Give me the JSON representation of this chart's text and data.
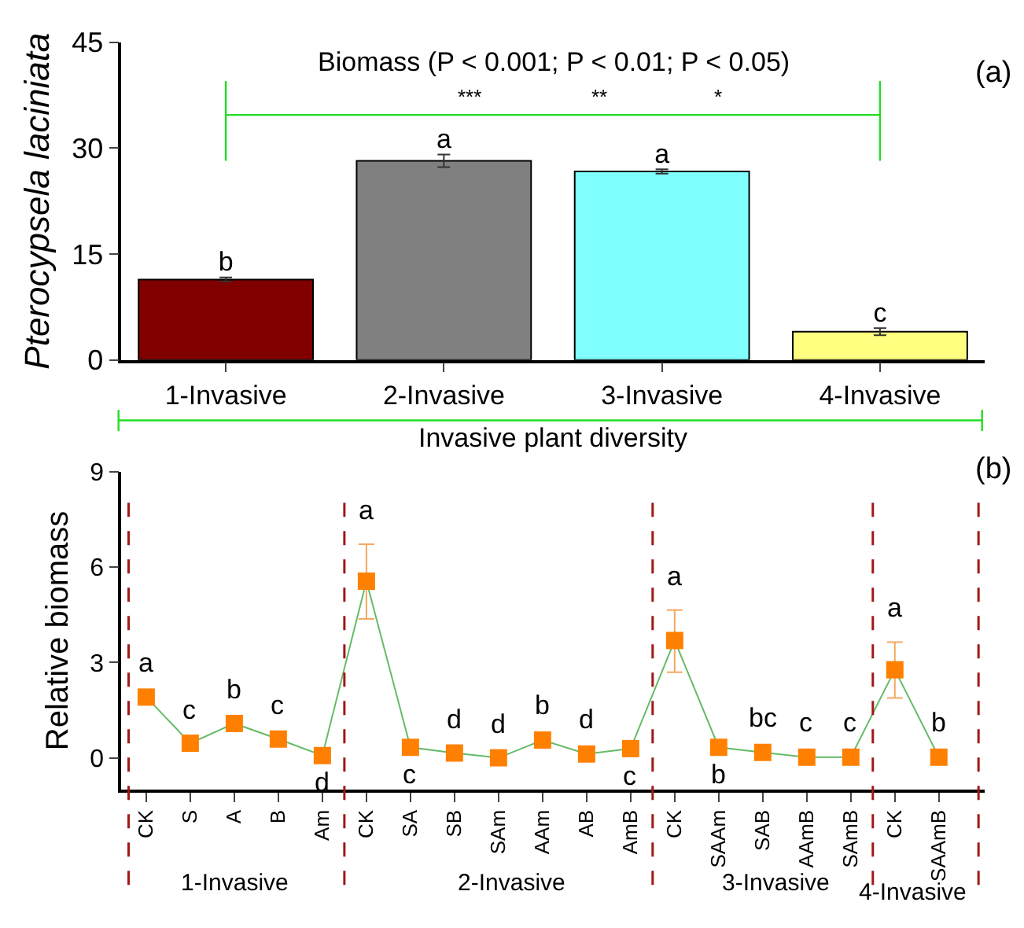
{
  "chart_data": [
    {
      "type": "bar",
      "ylabel": "Pterocypsela laciniata",
      "xlabel": "Invasive plant diversity",
      "categories": [
        "1-Invasive",
        "2-Invasive",
        "3-Invasive",
        "4-Invasive"
      ],
      "values": [
        11.4,
        28.2,
        26.7,
        4.0
      ],
      "colors": [
        "#800000",
        "#808080",
        "#80ffff",
        "#ffff80"
      ],
      "errors": [
        0.3,
        0.9,
        0.3,
        0.5
      ],
      "value_labels": [
        "b",
        "a",
        "a",
        "c"
      ],
      "ylim": [
        0,
        45
      ],
      "yticks": [
        0,
        15,
        30,
        45
      ],
      "legend": false,
      "ref_lines": [
        {
          "axis": "y",
          "value": 34.7,
          "color": "#22dd22"
        },
        {
          "axis": "x",
          "value": "1-Invasive",
          "color": "#22dd22"
        },
        {
          "axis": "x",
          "value": "4-Invasive",
          "color": "#22dd22"
        }
      ],
      "annotations": [
        "Biomass (P < 0.001; P < 0.01; P < 0.05)",
        "***",
        "**",
        "*",
        "(a)"
      ]
    },
    {
      "type": "line",
      "ylabel": "Relative biomass",
      "categories": [
        "CK",
        "S",
        "A",
        "B",
        "Am",
        "CK",
        "SA",
        "SB",
        "SAm",
        "AAm",
        "AB",
        "AmB",
        "CK",
        "SAAm",
        "SAB",
        "AAmB",
        "SAmB",
        "CK",
        "SAAmB"
      ],
      "series": [
        {
          "color": "#ff8000",
          "values": [
            1.91,
            0.46,
            1.08,
            0.59,
            0.07,
            5.56,
            0.33,
            0.15,
            0.0,
            0.56,
            0.12,
            0.29,
            3.69,
            0.33,
            0.17,
            0.02,
            0.02,
            2.77,
            0.02
          ],
          "errors": [
            null,
            null,
            null,
            null,
            null,
            [
              4.37,
              6.72
            ],
            null,
            null,
            null,
            null,
            null,
            null,
            [
              2.69,
              4.65
            ],
            null,
            null,
            null,
            null,
            [
              1.88,
              3.64
            ],
            null
          ],
          "value_labels": [
            "a",
            "c",
            "b",
            "c",
            "d",
            "a",
            "c",
            "d",
            "d",
            "b",
            "d",
            "c",
            "a",
            "b",
            "bc",
            "c",
            "c",
            "a",
            "b"
          ]
        }
      ],
      "marker": "square",
      "line_style": "solid",
      "ylim": [
        -1,
        9
      ],
      "yticks": [
        0,
        3,
        6,
        9
      ],
      "legend": false,
      "annotations": [
        "(b)",
        "1-Invasive",
        "2-Invasive",
        "3-Invasive",
        "4-Invasive"
      ]
    }
  ]
}
